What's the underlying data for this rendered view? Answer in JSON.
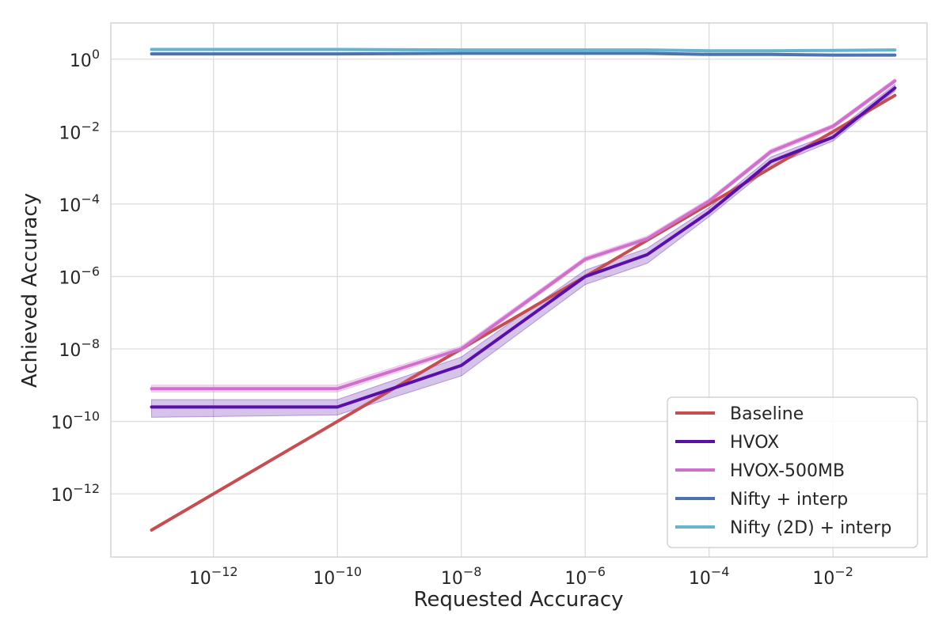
{
  "chart_data": {
    "type": "line",
    "xlabel": "Requested Accuracy",
    "ylabel": "Achieved Accuracy",
    "xscale": "log",
    "yscale": "log",
    "xlim": [
      2.2e-14,
      0.33
    ],
    "ylim": [
      1.8e-14,
      10
    ],
    "grid": true,
    "legend_position": "bottom-right",
    "x_ticks": [
      1e-12,
      1e-10,
      1e-08,
      1e-06,
      0.0001,
      0.01
    ],
    "x_tick_labels": [
      {
        "base": "10",
        "exp": "−12"
      },
      {
        "base": "10",
        "exp": "−10"
      },
      {
        "base": "10",
        "exp": "−8"
      },
      {
        "base": "10",
        "exp": "−6"
      },
      {
        "base": "10",
        "exp": "−4"
      },
      {
        "base": "10",
        "exp": "−2"
      }
    ],
    "y_ticks": [
      1e-12,
      1e-10,
      1e-08,
      1e-06,
      0.0001,
      0.01,
      1
    ],
    "y_tick_labels": [
      {
        "base": "10",
        "exp": "−12"
      },
      {
        "base": "10",
        "exp": "−10"
      },
      {
        "base": "10",
        "exp": "−8"
      },
      {
        "base": "10",
        "exp": "−6"
      },
      {
        "base": "10",
        "exp": "−4"
      },
      {
        "base": "10",
        "exp": "−2"
      },
      {
        "base": "10",
        "exp": "0"
      }
    ],
    "x": [
      1e-13,
      1e-10,
      1e-08,
      1e-06,
      1e-05,
      0.0001,
      0.001,
      0.01,
      0.1
    ],
    "series": [
      {
        "name": "Baseline",
        "color": "#c44e52",
        "values": [
          1e-13,
          1e-10,
          1e-08,
          1e-06,
          1e-05,
          0.0001,
          0.001,
          0.01,
          0.1
        ]
      },
      {
        "name": "HVOX",
        "color": "#5a0fa8",
        "values": [
          2.5e-10,
          2.5e-10,
          3.5e-09,
          1e-06,
          4e-06,
          6e-05,
          0.0015,
          0.007,
          0.16
        ],
        "band_low": [
          1.3e-10,
          1.5e-10,
          1.8e-09,
          6e-07,
          2.3e-06,
          4.5e-05,
          0.0011,
          0.0055,
          0.13
        ],
        "band_high": [
          4e-10,
          4e-10,
          6e-09,
          1.5e-06,
          6e-06,
          8e-05,
          0.002,
          0.009,
          0.2
        ]
      },
      {
        "name": "HVOX-500MB",
        "color": "#d070cc",
        "values": [
          8e-10,
          8e-10,
          1e-08,
          3e-06,
          1.1e-05,
          0.00012,
          0.0028,
          0.014,
          0.25
        ],
        "band_low": [
          6.5e-10,
          6.5e-10,
          8.5e-09,
          2.6e-06,
          9.5e-06,
          0.000105,
          0.0024,
          0.012,
          0.22
        ],
        "band_high": [
          1e-09,
          1e-09,
          1.2e-08,
          3.5e-06,
          1.3e-05,
          0.00014,
          0.0033,
          0.016,
          0.29
        ]
      },
      {
        "name": "Nifty + interp",
        "color": "#4c72b0",
        "values": [
          1.4,
          1.4,
          1.45,
          1.45,
          1.45,
          1.35,
          1.35,
          1.3,
          1.3
        ]
      },
      {
        "name": "Nifty (2D) + interp",
        "color": "#64b5cd",
        "values": [
          1.85,
          1.85,
          1.8,
          1.8,
          1.8,
          1.7,
          1.7,
          1.75,
          1.8
        ]
      }
    ]
  },
  "axes_colors": {
    "grid": "#dcdcdc",
    "spine": "#cccccc",
    "background": "#ffffff"
  }
}
